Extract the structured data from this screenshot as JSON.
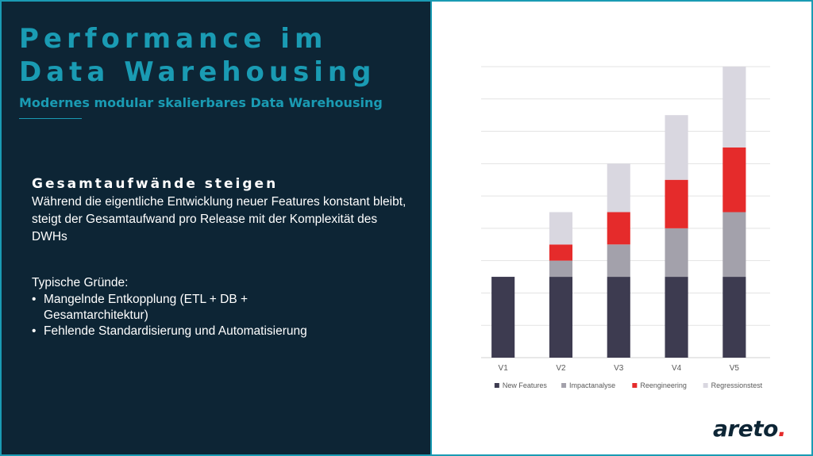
{
  "slide": {
    "title_line1": "Performance im",
    "title_line2": "Data Warehousing",
    "subtitle": "Modernes modular skalierbares Data Warehousing",
    "section_heading": "Gesamtaufwände steigen",
    "section_body": "Während die eigentliche Entwicklung neuer Features konstant bleibt, steigt der Gesamtaufwand pro Release mit der Komplexität des DWHs",
    "reasons_heading": "Typische Gründe:",
    "reasons": [
      "Mangelnde Entkopplung (ETL + DB + Gesamtarchitektur)",
      "Fehlende Standardisierung und Automatisierung"
    ],
    "logo_text": "areto",
    "logo_dot": "."
  },
  "colors": {
    "background_dark": "#0d2535",
    "accent": "#1a9bb3",
    "logo_dot": "#e52b2b"
  },
  "chart_data": {
    "type": "bar",
    "stacked": true,
    "categories": [
      "V1",
      "V2",
      "V3",
      "V4",
      "V5"
    ],
    "series": [
      {
        "name": "New Features",
        "color": "#3d3b50",
        "values": [
          5,
          5,
          5,
          5,
          5
        ]
      },
      {
        "name": "Impactanalyse",
        "color": "#a3a1ab",
        "values": [
          0,
          1,
          2,
          3,
          4
        ]
      },
      {
        "name": "Reengineering",
        "color": "#e52b2b",
        "values": [
          0,
          1,
          2,
          3,
          4
        ]
      },
      {
        "name": "Regressionstest",
        "color": "#d9d7e0",
        "values": [
          0,
          2,
          3,
          4,
          5
        ]
      }
    ],
    "ylim": [
      0,
      18
    ],
    "y_gridlines": [
      2,
      4,
      6,
      8,
      10,
      12,
      14,
      16,
      18
    ],
    "grid": true,
    "legend_position": "bottom",
    "xlabel": "",
    "ylabel": ""
  }
}
